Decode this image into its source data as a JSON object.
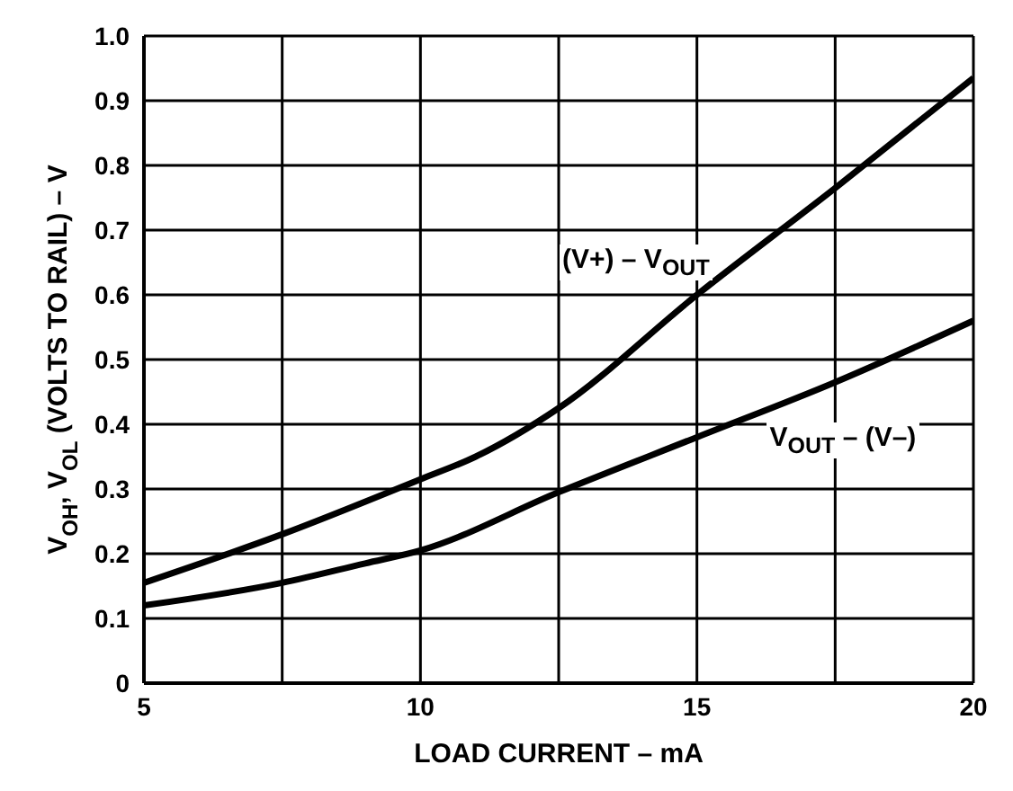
{
  "chart_data": {
    "type": "line",
    "xlabel": "LOAD CURRENT – mA",
    "ylabel": "V$_{OH}$, V$_{OL}$ (VOLTS TO RAIL) – V",
    "series": [
      {
        "color": "#000000",
        "x": [
          5,
          7.5,
          10,
          11,
          12.5,
          15,
          17.5,
          20
        ],
        "values": [
          0.155,
          0.23,
          0.315,
          0.35,
          0.425,
          0.6,
          0.765,
          0.935
        ]
      },
      {
        "color": "#000000",
        "x": [
          5,
          7.5,
          9,
          10,
          12.5,
          15,
          17.5,
          20
        ],
        "values": [
          0.12,
          0.155,
          0.185,
          0.205,
          0.295,
          0.38,
          0.465,
          0.56
        ]
      }
    ],
    "annotations": [
      "(V+) – V$_{OUT}$",
      "V$_{OUT}$ – (V–)"
    ],
    "xlim": [
      5,
      20
    ],
    "xticks": [
      5,
      {
        "value": 7.5,
        "label": null
      },
      10,
      {
        "value": 12.5,
        "label": null
      },
      15,
      {
        "value": 17.5,
        "label": null
      },
      20
    ],
    "ylim": [
      0,
      1.0
    ],
    "yticks": [
      0,
      0.1,
      0.2,
      0.3,
      0.4,
      0.5,
      0.6,
      0.7,
      0.8,
      0.9,
      {
        "value": 1.0,
        "label": "1.0"
      }
    ],
    "grid": true,
    "marker": "none",
    "line_style": "solid"
  }
}
